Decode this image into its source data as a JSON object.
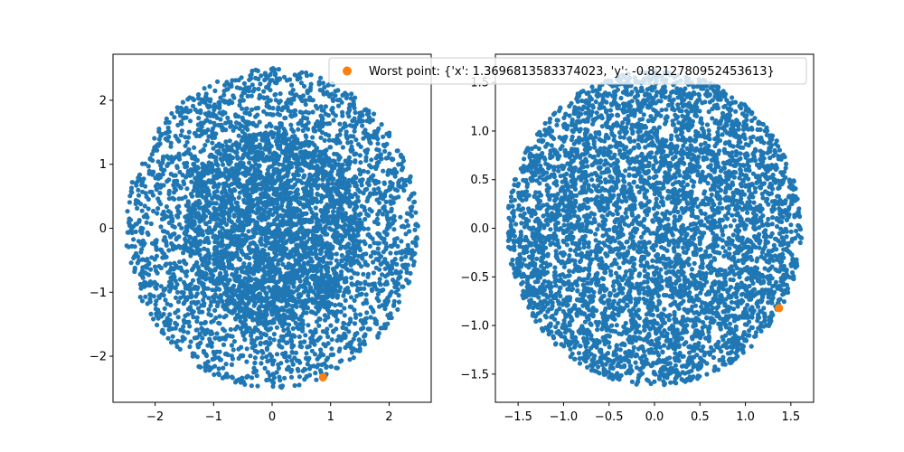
{
  "chart_data": [
    {
      "type": "scatter",
      "title": "",
      "xlabel": "",
      "ylabel": "",
      "xlim": [
        -2.72,
        2.72
      ],
      "ylim": [
        -2.72,
        2.72
      ],
      "grid": false,
      "xticks": [
        {
          "value": -2,
          "label": "−2"
        },
        {
          "value": -1,
          "label": "−1"
        },
        {
          "value": 0,
          "label": "0"
        },
        {
          "value": 1,
          "label": "1"
        },
        {
          "value": 2,
          "label": "2"
        }
      ],
      "yticks": [
        {
          "value": -2,
          "label": "−2"
        },
        {
          "value": -1,
          "label": "−1"
        },
        {
          "value": 0,
          "label": "0"
        },
        {
          "value": 1,
          "label": "1"
        },
        {
          "value": 2,
          "label": "2"
        }
      ],
      "series": [
        {
          "color": "#1f77b4",
          "description": "dense cloud of about 5000 points filling a disc of radius about 2.5 centred at the origin, densest near the centre",
          "distribution": {
            "shape": "disc",
            "center": [
              0,
              0
            ],
            "radius": 2.5,
            "count": 5000
          }
        },
        {
          "color": "#ff7f0e",
          "points": [
            {
              "x": 0.87,
              "y": -2.33
            }
          ]
        }
      ]
    },
    {
      "type": "scatter",
      "title": "",
      "xlabel": "",
      "ylabel": "",
      "xlim": [
        -1.75,
        1.75
      ],
      "ylim": [
        -1.79,
        1.79
      ],
      "grid": false,
      "xticks": [
        {
          "value": -1.5,
          "label": "−1.5"
        },
        {
          "value": -1.0,
          "label": "−1.0"
        },
        {
          "value": -0.5,
          "label": "−0.5"
        },
        {
          "value": 0.0,
          "label": "0.0"
        },
        {
          "value": 0.5,
          "label": "0.5"
        },
        {
          "value": 1.0,
          "label": "1.0"
        },
        {
          "value": 1.5,
          "label": "1.5"
        }
      ],
      "yticks": [
        {
          "value": -1.5,
          "label": "−1.5"
        },
        {
          "value": -1.0,
          "label": "−1.0"
        },
        {
          "value": -0.5,
          "label": "−0.5"
        },
        {
          "value": 0.0,
          "label": "0.0"
        },
        {
          "value": 0.5,
          "label": "0.5"
        },
        {
          "value": 1.0,
          "label": "1.0"
        },
        {
          "value": 1.5,
          "label": "1.5"
        }
      ],
      "series": [
        {
          "color": "#1f77b4",
          "description": "dense, nearly uniform cloud of about 5000 points filling a rounded region of radius about 1.6 centred at the origin",
          "distribution": {
            "shape": "disc",
            "center": [
              0,
              0
            ],
            "radius": 1.62,
            "count": 5000
          }
        },
        {
          "name": "Worst point: {'x': 1.3696813583374023, 'y': -0.8212780952453613}",
          "color": "#ff7f0e",
          "points": [
            {
              "x": 1.3696813583374023,
              "y": -0.8212780952453613
            }
          ]
        }
      ],
      "legend": {
        "position": "top",
        "entries": [
          "Worst point: {'x': 1.3696813583374023, 'y': -0.8212780952453613}"
        ]
      }
    }
  ]
}
